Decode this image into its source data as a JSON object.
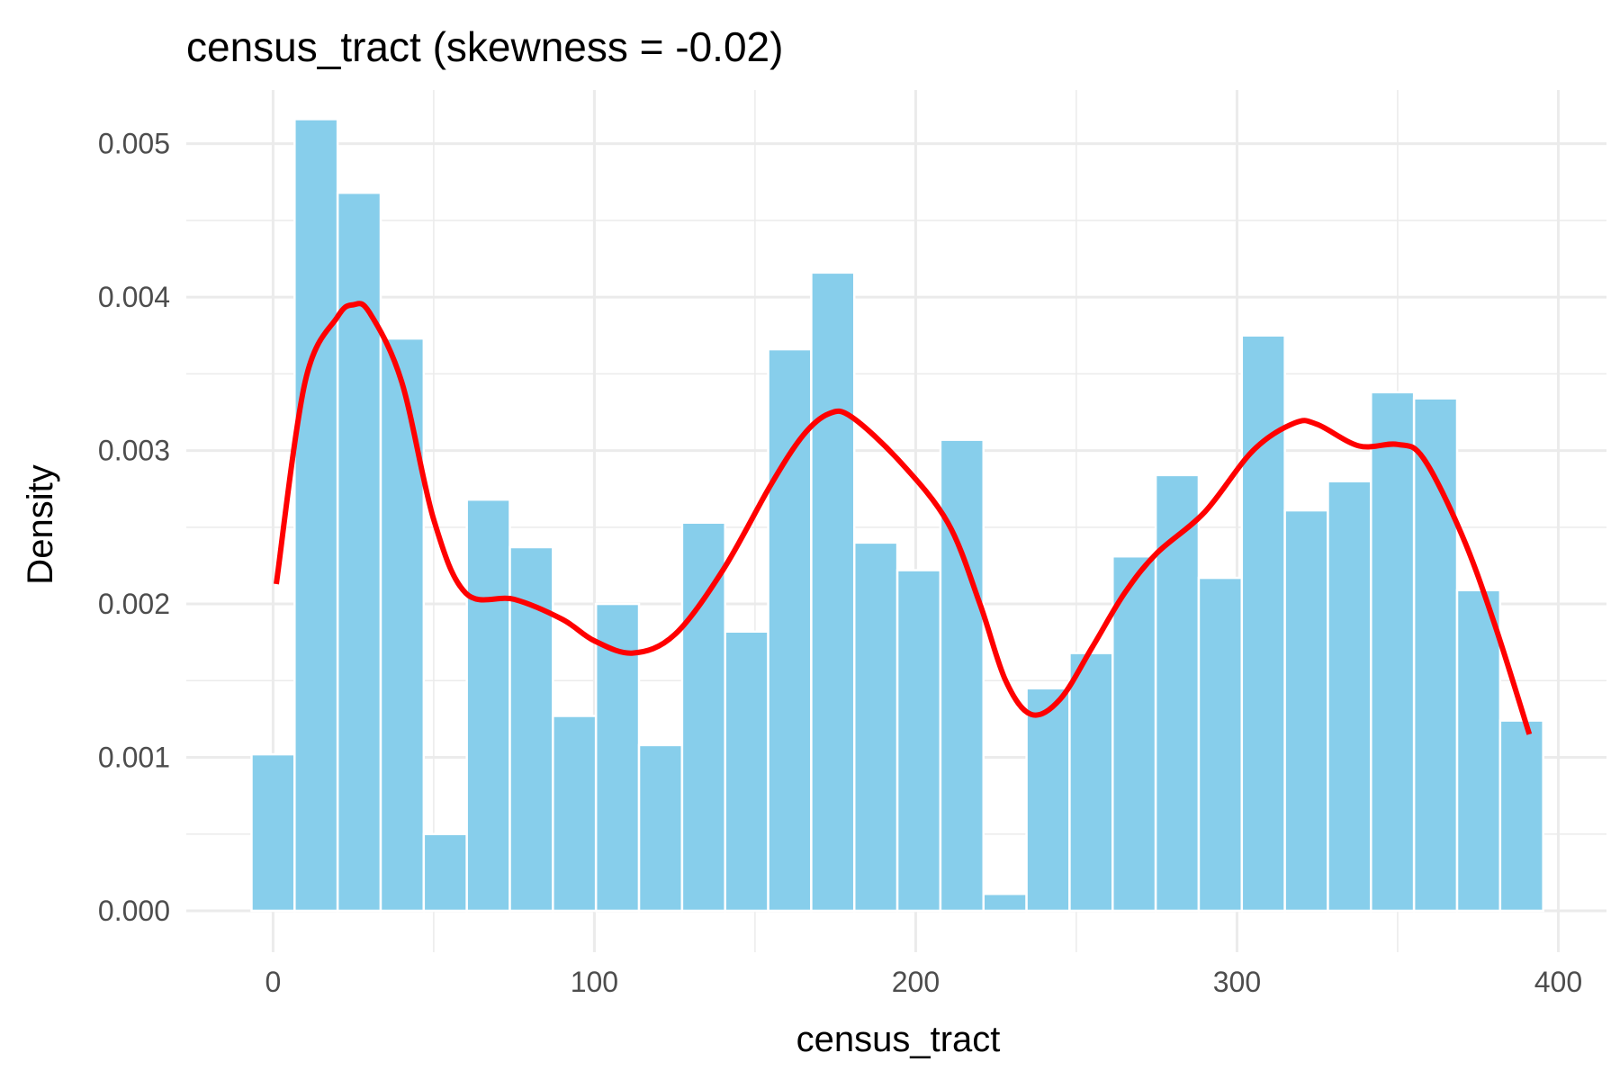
{
  "colors": {
    "bar_fill": "#87CEEB",
    "density_line": "#FF0000",
    "background": "#FFFFFF",
    "grid": "#EBEBEB"
  },
  "chart_data": {
    "type": "bar",
    "subtype": "histogram-with-density",
    "title": "census_tract (skewness = -0.02)",
    "xlabel": "census_tract",
    "ylabel": "Density",
    "xlim": [
      -27,
      415
    ],
    "ylim": [
      -0.00027,
      0.00535
    ],
    "x_ticks": [
      0,
      100,
      200,
      300,
      400
    ],
    "x_tick_labels": [
      "0",
      "100",
      "200",
      "300",
      "400"
    ],
    "y_ticks": [
      0,
      0.001,
      0.002,
      0.003,
      0.004,
      0.005
    ],
    "y_tick_labels": [
      "0.000",
      "0.001",
      "0.002",
      "0.003",
      "0.004",
      "0.005"
    ],
    "grid": true,
    "legend": "none",
    "bin_width": 13.4,
    "bins": [
      {
        "x": 0.0,
        "density": 0.00102
      },
      {
        "x": 13.4,
        "density": 0.00516
      },
      {
        "x": 26.8,
        "density": 0.00468
      },
      {
        "x": 40.2,
        "density": 0.00373
      },
      {
        "x": 53.6,
        "density": 0.0005
      },
      {
        "x": 67.0,
        "density": 0.00268
      },
      {
        "x": 80.4,
        "density": 0.00237
      },
      {
        "x": 93.8,
        "density": 0.00127
      },
      {
        "x": 107.2,
        "density": 0.002
      },
      {
        "x": 120.6,
        "density": 0.00108
      },
      {
        "x": 134.0,
        "density": 0.00253
      },
      {
        "x": 147.4,
        "density": 0.00182
      },
      {
        "x": 160.8,
        "density": 0.00366
      },
      {
        "x": 174.2,
        "density": 0.00416
      },
      {
        "x": 187.6,
        "density": 0.0024
      },
      {
        "x": 201.0,
        "density": 0.00222
      },
      {
        "x": 214.4,
        "density": 0.00307
      },
      {
        "x": 227.8,
        "density": 0.00011
      },
      {
        "x": 241.2,
        "density": 0.00145
      },
      {
        "x": 254.6,
        "density": 0.00168
      },
      {
        "x": 268.0,
        "density": 0.00231
      },
      {
        "x": 281.4,
        "density": 0.00284
      },
      {
        "x": 294.8,
        "density": 0.00217
      },
      {
        "x": 308.2,
        "density": 0.00375
      },
      {
        "x": 321.6,
        "density": 0.00261
      },
      {
        "x": 335.0,
        "density": 0.0028
      },
      {
        "x": 348.4,
        "density": 0.00338
      },
      {
        "x": 361.8,
        "density": 0.00334
      },
      {
        "x": 375.2,
        "density": 0.00209
      },
      {
        "x": 388.6,
        "density": 0.00124
      }
    ],
    "density_curve": [
      [
        1,
        0.00213
      ],
      [
        10,
        0.00345
      ],
      [
        20,
        0.00387
      ],
      [
        25,
        0.00395
      ],
      [
        30,
        0.0039
      ],
      [
        40,
        0.00345
      ],
      [
        50,
        0.00255
      ],
      [
        60,
        0.00207
      ],
      [
        75,
        0.00203
      ],
      [
        90,
        0.0019
      ],
      [
        100,
        0.00176
      ],
      [
        112,
        0.00168
      ],
      [
        125,
        0.0018
      ],
      [
        140,
        0.00222
      ],
      [
        155,
        0.00278
      ],
      [
        165,
        0.0031
      ],
      [
        173,
        0.00324
      ],
      [
        180,
        0.00322
      ],
      [
        195,
        0.00293
      ],
      [
        210,
        0.00253
      ],
      [
        220,
        0.002
      ],
      [
        228,
        0.0015
      ],
      [
        236,
        0.00128
      ],
      [
        245,
        0.00138
      ],
      [
        255,
        0.00172
      ],
      [
        265,
        0.00207
      ],
      [
        275,
        0.00233
      ],
      [
        290,
        0.0026
      ],
      [
        305,
        0.003
      ],
      [
        318,
        0.00318
      ],
      [
        325,
        0.00317
      ],
      [
        338,
        0.00303
      ],
      [
        350,
        0.00304
      ],
      [
        358,
        0.00295
      ],
      [
        370,
        0.00245
      ],
      [
        380,
        0.00188
      ],
      [
        391,
        0.00115
      ]
    ]
  }
}
